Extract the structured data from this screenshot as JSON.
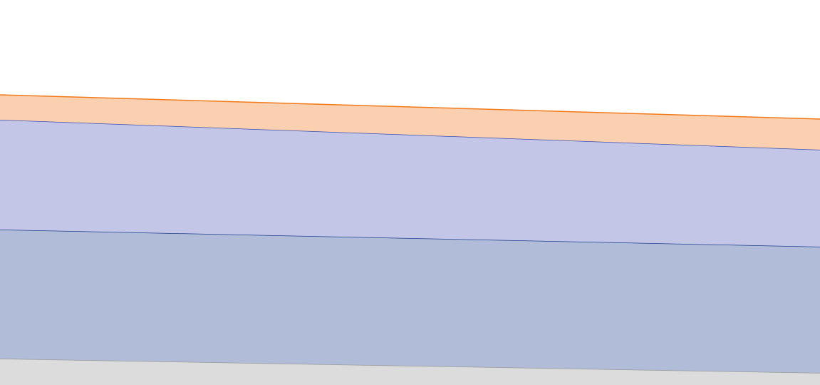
{
  "chart_data": {
    "type": "area",
    "stacked": true,
    "categories": [
      null,
      null
    ],
    "ylim": [
      0,
      540
    ],
    "series": [
      {
        "color": "#dcdcdc",
        "line_color": "#9a9a9a",
        "values": [
          37,
          17
        ]
      },
      {
        "color": "#b0bcd8",
        "line_color": "#1f3f8f",
        "values": [
          181,
          177
        ]
      },
      {
        "color": "#c3c6e6",
        "line_color": "#3a4fb0",
        "values": [
          154,
          136
        ]
      },
      {
        "color": "#fbd0b0",
        "line_color": "#f07a1a",
        "values": [
          35,
          43
        ]
      }
    ]
  }
}
